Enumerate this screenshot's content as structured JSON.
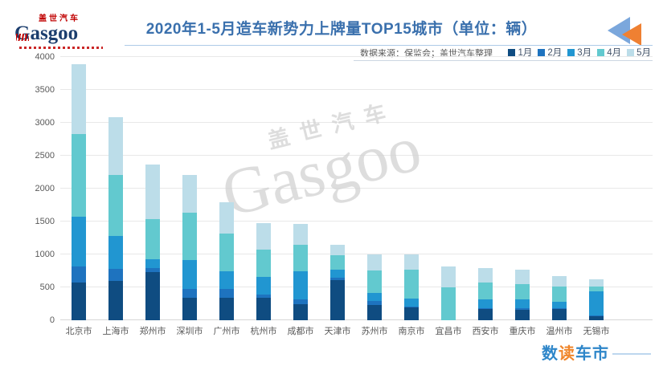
{
  "header": {
    "logo": {
      "cn": "盖世汽车",
      "en": "Gasgoo"
    },
    "title": "2020年1-5月造车新势力上牌量TOP15城市（单位：辆）"
  },
  "meta": {
    "source": "数据来源：保监会；盖世汽车整理"
  },
  "watermark": {
    "cn": "盖世汽车",
    "en": "Gasgoo"
  },
  "footer": {
    "p1": "数",
    "p2": "读",
    "p3": "车市"
  },
  "chart_data": {
    "type": "bar",
    "stacked": true,
    "title": "2020年1-5月造车新势力上牌量TOP15城市（单位：辆）",
    "categories": [
      "北京市",
      "上海市",
      "郑州市",
      "深圳市",
      "广州市",
      "杭州市",
      "成都市",
      "天津市",
      "苏州市",
      "南京市",
      "宜昌市",
      "西安市",
      "重庆市",
      "温州市",
      "无锡市"
    ],
    "series": [
      {
        "name": "1月",
        "color": "#0f4c81",
        "values": [
          575,
          600,
          730,
          345,
          345,
          345,
          240,
          605,
          230,
          200,
          0,
          170,
          165,
          170,
          60
        ]
      },
      {
        "name": "2月",
        "color": "#1e73bf",
        "values": [
          245,
          180,
          60,
          130,
          130,
          50,
          75,
          40,
          60,
          10,
          0,
          10,
          25,
          10,
          10
        ]
      },
      {
        "name": "3月",
        "color": "#2196d1",
        "values": [
          760,
          500,
          135,
          435,
          265,
          265,
          425,
          125,
          125,
          125,
          0,
          140,
          130,
          100,
          370
        ]
      },
      {
        "name": "4月",
        "color": "#62c9cf",
        "values": [
          1250,
          930,
          610,
          720,
          575,
          420,
          405,
          215,
          345,
          435,
          495,
          255,
          235,
          235,
          70
        ]
      },
      {
        "name": "5月",
        "color": "#bcdde9",
        "values": [
          1060,
          880,
          830,
          580,
          475,
          395,
          320,
          160,
          245,
          225,
          320,
          215,
          210,
          160,
          110
        ]
      }
    ],
    "totals": [
      3890,
      3090,
      2365,
      2210,
      1790,
      1475,
      1465,
      1145,
      1005,
      995,
      815,
      790,
      765,
      675,
      620
    ],
    "ylabel": "",
    "xlabel": "",
    "ylim": [
      0,
      4000
    ],
    "yticks": [
      0,
      500,
      1000,
      1500,
      2000,
      2500,
      3000,
      3500,
      4000
    ],
    "grid": true,
    "legend_position": "top-right"
  }
}
